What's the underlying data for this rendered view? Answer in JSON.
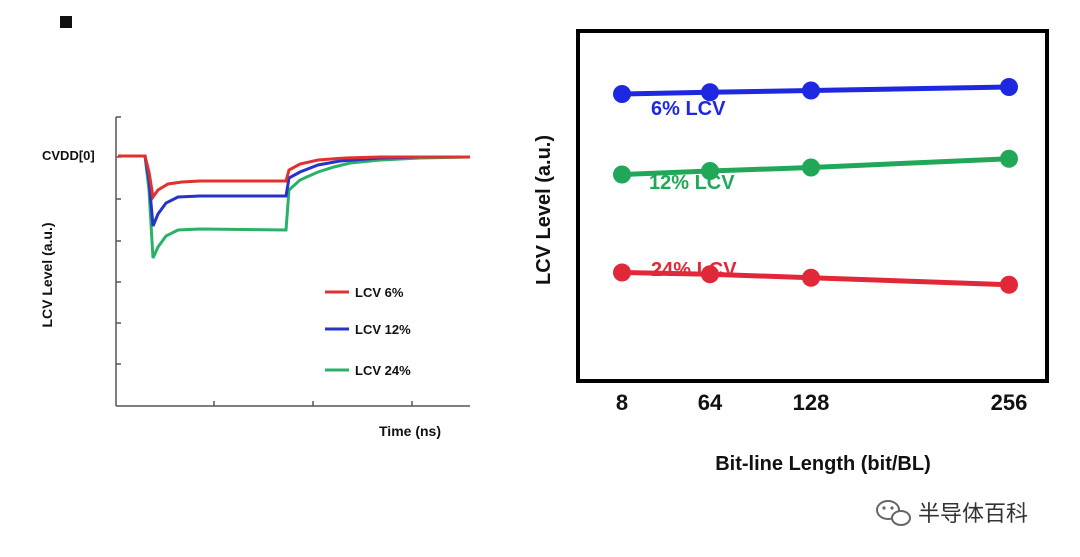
{
  "chart_data": [
    {
      "type": "line",
      "title": "",
      "xlabel": "Time (ns)",
      "ylabel": "LCV Level (a.u.)",
      "y_reference_label": "CVDD[0]",
      "axes_ticks_labeled": false,
      "grid": false,
      "legend": {
        "placement": "bottom-right"
      },
      "series": [
        {
          "name": "LCV 6%",
          "color": "#e03030"
        },
        {
          "name": "LCV 12%",
          "color": "#2832c8"
        },
        {
          "name": "LCV 24%",
          "color": "#2ab068"
        }
      ]
    },
    {
      "type": "line",
      "title": "",
      "xlabel": "Bit-line Length (bit/BL)",
      "ylabel": "LCV Level (a.u.)",
      "categories": [
        "8",
        "64",
        "128",
        "256"
      ],
      "x": [
        8,
        64,
        128,
        256
      ],
      "ylim": [
        0,
        100
      ],
      "grid": false,
      "series": [
        {
          "name": "6% LCV",
          "color": "#1e28e0",
          "values": [
            82,
            82.5,
            83,
            84
          ]
        },
        {
          "name": "12% LCV",
          "color": "#20a858",
          "values": [
            59,
            60,
            61,
            63.5
          ]
        },
        {
          "name": "24% LCV",
          "color": "#e02838",
          "values": [
            31,
            30.5,
            29.5,
            27.5
          ]
        }
      ]
    }
  ],
  "watermark": {
    "text": "半导体百科"
  }
}
